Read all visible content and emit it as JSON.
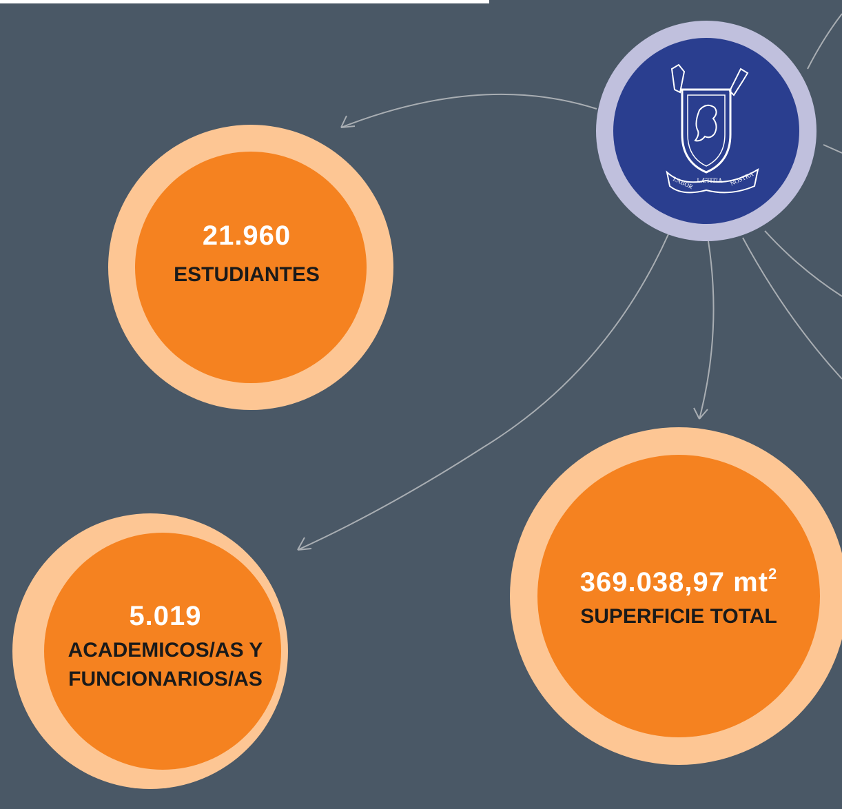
{
  "stats": [
    {
      "value": "21.960",
      "label": [
        "ESTUDIANTES"
      ]
    },
    {
      "value": "5.019",
      "label": [
        "ACADEMICOS/AS Y",
        "FUNCIONARIOS/AS"
      ]
    },
    {
      "value": "369.038,97 mt",
      "superscript": "2",
      "label": [
        "SUPERFICIE TOTAL"
      ]
    }
  ],
  "logo": {
    "motto": [
      "LABOR",
      "LÆTITIA",
      "NOSTRA"
    ]
  }
}
